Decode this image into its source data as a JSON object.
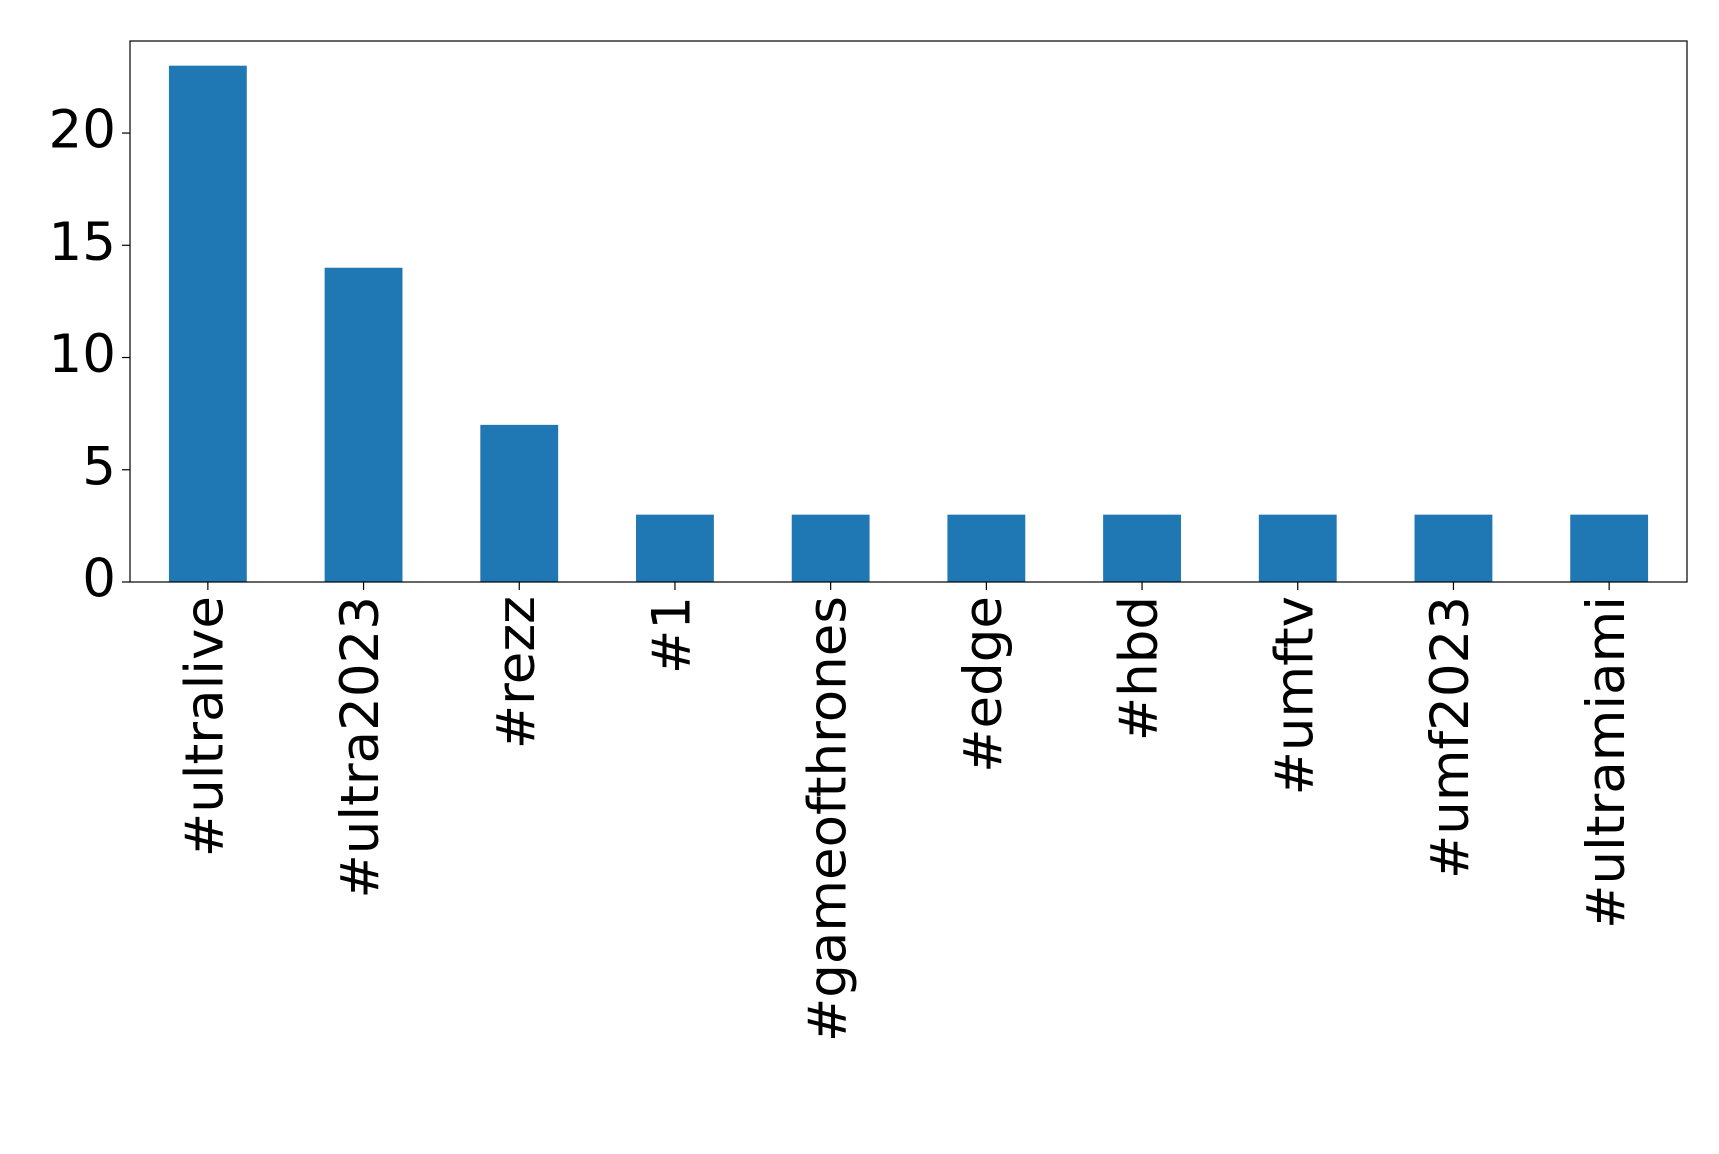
{
  "chart_data": {
    "type": "bar",
    "categories": [
      "#ultralive",
      "#ultra2023",
      "#rezz",
      "#1",
      "#gameofthrones",
      "#edge",
      "#hbd",
      "#umftv",
      "#umf2023",
      "#ultramiami"
    ],
    "values": [
      23,
      14,
      7,
      3,
      3,
      3,
      3,
      3,
      3,
      3
    ],
    "color": "#1f77b4",
    "ylim": [
      0,
      24.1
    ],
    "yticks": [
      0,
      5,
      10,
      15,
      20
    ],
    "grid": false
  }
}
